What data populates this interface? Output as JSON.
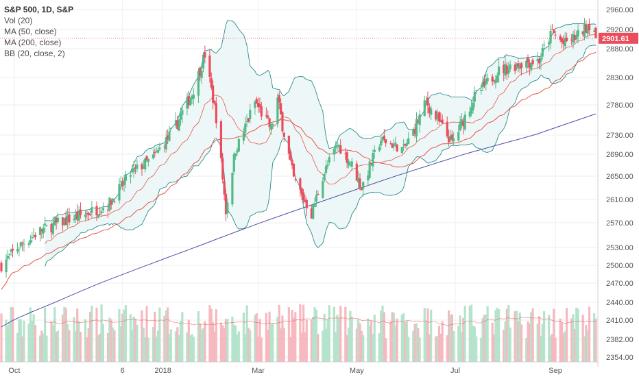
{
  "header": {
    "symbol": "S&P 500, 1D, S&P",
    "indicators": [
      "Vol (20)",
      "MA (50, close)",
      "MA (200, close)",
      "BB (20, close, 2)"
    ]
  },
  "last_price": "2901.61",
  "colors": {
    "up": "#53b987",
    "down": "#eb4d5c",
    "vol_up": "#b5e3cb",
    "vol_down": "#f6b9bf",
    "ma50": "#e8534d",
    "ma200": "#4b50a8",
    "bb": "#2a8b8b",
    "bb_fill": "#e9f5f5",
    "badge": "#eb4d5c",
    "grid": "#eeeeee"
  },
  "chart_data": {
    "type": "candlestick",
    "y_axis": {
      "ticks": [
        "2960.00",
        "2920.00",
        "2880.00",
        "2830.00",
        "2780.00",
        "2730.00",
        "2690.00",
        "2650.00",
        "2610.00",
        "2570.00",
        "2530.00",
        "2500.00",
        "2470.00",
        "2440.00",
        "2410.00",
        "2382.00",
        "2354.00"
      ],
      "scale": "log"
    },
    "x_axis": {
      "ticks": [
        "Oct",
        "6",
        "2018",
        "Mar",
        "May",
        "Jul",
        "Sep"
      ]
    },
    "price_anchors": [
      {
        "t": "Sep 22",
        "c": 2500
      },
      {
        "t": "Oct 2",
        "c": 2530
      },
      {
        "t": "Oct 16",
        "c": 2557
      },
      {
        "t": "Oct 30",
        "c": 2572
      },
      {
        "t": "Nov 13",
        "c": 2585
      },
      {
        "t": "Nov 27",
        "c": 2600
      },
      {
        "t": "Dec 11",
        "c": 2655
      },
      {
        "t": "Dec 25",
        "c": 2683
      },
      {
        "t": "Jan 8",
        "c": 2745
      },
      {
        "t": "Jan 18",
        "c": 2800
      },
      {
        "t": "Jan 26",
        "c": 2870
      },
      {
        "t": "Feb 2",
        "c": 2760
      },
      {
        "t": "Feb 8",
        "c": 2590
      },
      {
        "t": "Feb 14",
        "c": 2700
      },
      {
        "t": "Feb 26",
        "c": 2785
      },
      {
        "t": "Mar 8",
        "c": 2740
      },
      {
        "t": "Mar 12",
        "c": 2790
      },
      {
        "t": "Mar 22",
        "c": 2645
      },
      {
        "t": "Apr 2",
        "c": 2585
      },
      {
        "t": "Apr 9",
        "c": 2650
      },
      {
        "t": "Apr 18",
        "c": 2710
      },
      {
        "t": "Apr 27",
        "c": 2670
      },
      {
        "t": "May 3",
        "c": 2630
      },
      {
        "t": "May 15",
        "c": 2720
      },
      {
        "t": "May 29",
        "c": 2700
      },
      {
        "t": "Jun 12",
        "c": 2785
      },
      {
        "t": "Jun 28",
        "c": 2715
      },
      {
        "t": "Jul 12",
        "c": 2795
      },
      {
        "t": "Jul 26",
        "c": 2840
      },
      {
        "t": "Aug 9",
        "c": 2855
      },
      {
        "t": "Aug 21",
        "c": 2860
      },
      {
        "t": "Aug 29",
        "c": 2915
      },
      {
        "t": "Sep 5",
        "c": 2890
      },
      {
        "t": "Sep 13",
        "c": 2905
      },
      {
        "t": "Sep 21",
        "c": 2930
      },
      {
        "t": "Sep 24",
        "c": 2920
      },
      {
        "t": "Sep 25",
        "c": 2902
      }
    ],
    "last_close": 2901.61,
    "ma200_range": [
      2400,
      2765
    ],
    "series_names": [
      "Vol (20)",
      "MA (50, close)",
      "MA (200, close)",
      "BB (20, close, 2)"
    ]
  }
}
